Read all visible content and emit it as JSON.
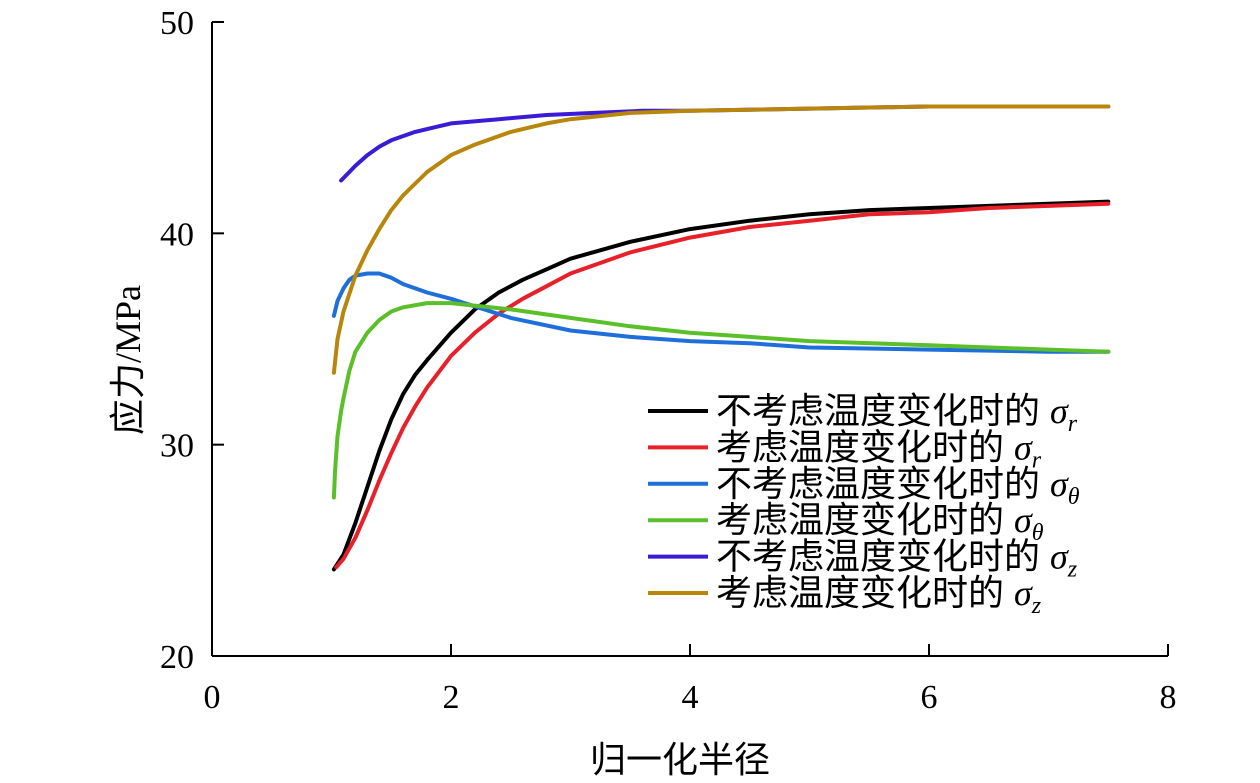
{
  "chart_data": {
    "type": "line",
    "xlabel": "归一化半径",
    "ylabel": "应力/MPa",
    "xlim": [
      0,
      8
    ],
    "ylim": [
      20,
      50
    ],
    "xticks": [
      "0",
      "2",
      "4",
      "6",
      "8"
    ],
    "yticks": [
      "20",
      "30",
      "40",
      "50"
    ],
    "grid": false,
    "legend_position": "bottom-right",
    "series": [
      {
        "name": "不考虑温度变化时的 σr",
        "label_text": "不考虑温度变化时的",
        "symbol": "σ",
        "subscript": "r",
        "color": "#000000",
        "x": [
          1.02,
          1.1,
          1.2,
          1.3,
          1.4,
          1.5,
          1.6,
          1.7,
          1.8,
          2.0,
          2.2,
          2.4,
          2.6,
          2.8,
          3.0,
          3.5,
          4.0,
          4.5,
          5.0,
          5.5,
          6.0,
          6.5,
          7.0,
          7.5
        ],
        "y": [
          24.1,
          24.8,
          26.3,
          28.0,
          29.7,
          31.2,
          32.4,
          33.3,
          34.0,
          35.3,
          36.4,
          37.2,
          37.8,
          38.3,
          38.8,
          39.6,
          40.2,
          40.6,
          40.9,
          41.1,
          41.2,
          41.3,
          41.4,
          41.5
        ]
      },
      {
        "name": "考虑温度变化时的 σr",
        "label_text": "考虑温度变化时的",
        "symbol": "σ",
        "subscript": "r",
        "color": "#e8202a",
        "x": [
          1.04,
          1.1,
          1.2,
          1.3,
          1.4,
          1.5,
          1.6,
          1.7,
          1.8,
          2.0,
          2.2,
          2.4,
          2.6,
          2.8,
          3.0,
          3.5,
          4.0,
          4.5,
          5.0,
          5.5,
          6.0,
          6.5,
          7.0,
          7.5
        ],
        "y": [
          24.2,
          24.6,
          25.6,
          26.9,
          28.3,
          29.6,
          30.8,
          31.8,
          32.7,
          34.2,
          35.3,
          36.2,
          36.9,
          37.5,
          38.1,
          39.1,
          39.8,
          40.3,
          40.6,
          40.9,
          41.0,
          41.2,
          41.3,
          41.4
        ]
      },
      {
        "name": "不考虑温度变化时的 σθ",
        "label_text": "不考虑温度变化时的",
        "symbol": "σ",
        "subscript": "θ",
        "color": "#1e6fd9",
        "x": [
          1.02,
          1.05,
          1.1,
          1.15,
          1.2,
          1.3,
          1.4,
          1.5,
          1.6,
          1.8,
          2.0,
          2.5,
          3.0,
          3.5,
          4.0,
          4.5,
          5.0,
          6.0,
          7.0,
          7.5
        ],
        "y": [
          36.1,
          36.8,
          37.4,
          37.8,
          38.0,
          38.1,
          38.1,
          37.9,
          37.6,
          37.2,
          36.9,
          36.0,
          35.4,
          35.1,
          34.9,
          34.8,
          34.6,
          34.5,
          34.4,
          34.4
        ]
      },
      {
        "name": "考虑温度变化时的 σθ",
        "label_text": "考虑温度变化时的",
        "symbol": "σ",
        "subscript": "θ",
        "color": "#5bbf2a",
        "x": [
          1.02,
          1.03,
          1.05,
          1.08,
          1.1,
          1.15,
          1.2,
          1.3,
          1.4,
          1.5,
          1.6,
          1.8,
          2.0,
          2.5,
          3.0,
          3.5,
          4.0,
          4.5,
          5.0,
          6.0,
          7.0,
          7.5
        ],
        "y": [
          27.5,
          28.8,
          30.4,
          31.6,
          32.2,
          33.5,
          34.4,
          35.3,
          35.9,
          36.3,
          36.5,
          36.7,
          36.7,
          36.4,
          36.0,
          35.6,
          35.3,
          35.1,
          34.9,
          34.7,
          34.5,
          34.4
        ]
      },
      {
        "name": "不考虑温度变化时的 σz",
        "label_text": "不考虑温度变化时的",
        "symbol": "σ",
        "subscript": "z",
        "color": "#3a1bd6",
        "x": [
          1.08,
          1.15,
          1.2,
          1.3,
          1.4,
          1.5,
          1.7,
          2.0,
          2.4,
          2.8,
          3.2,
          3.6,
          4.0,
          5.0,
          6.0,
          7.0,
          7.5
        ],
        "y": [
          42.5,
          42.9,
          43.2,
          43.7,
          44.1,
          44.4,
          44.8,
          45.2,
          45.4,
          45.6,
          45.7,
          45.8,
          45.8,
          45.9,
          46.0,
          46.0,
          46.0
        ]
      },
      {
        "name": "考虑温度变化时的 σz",
        "label_text": "考虑温度变化时的",
        "symbol": "σ",
        "subscript": "z",
        "color": "#b8860b",
        "x": [
          1.02,
          1.05,
          1.1,
          1.2,
          1.3,
          1.4,
          1.5,
          1.6,
          1.8,
          2.0,
          2.2,
          2.5,
          2.8,
          3.0,
          3.5,
          4.0,
          5.0,
          6.0,
          7.0,
          7.5
        ],
        "y": [
          33.4,
          35.0,
          36.3,
          38.0,
          39.2,
          40.2,
          41.1,
          41.8,
          42.9,
          43.7,
          44.2,
          44.8,
          45.2,
          45.4,
          45.7,
          45.8,
          45.9,
          46.0,
          46.0,
          46.0
        ]
      }
    ]
  }
}
